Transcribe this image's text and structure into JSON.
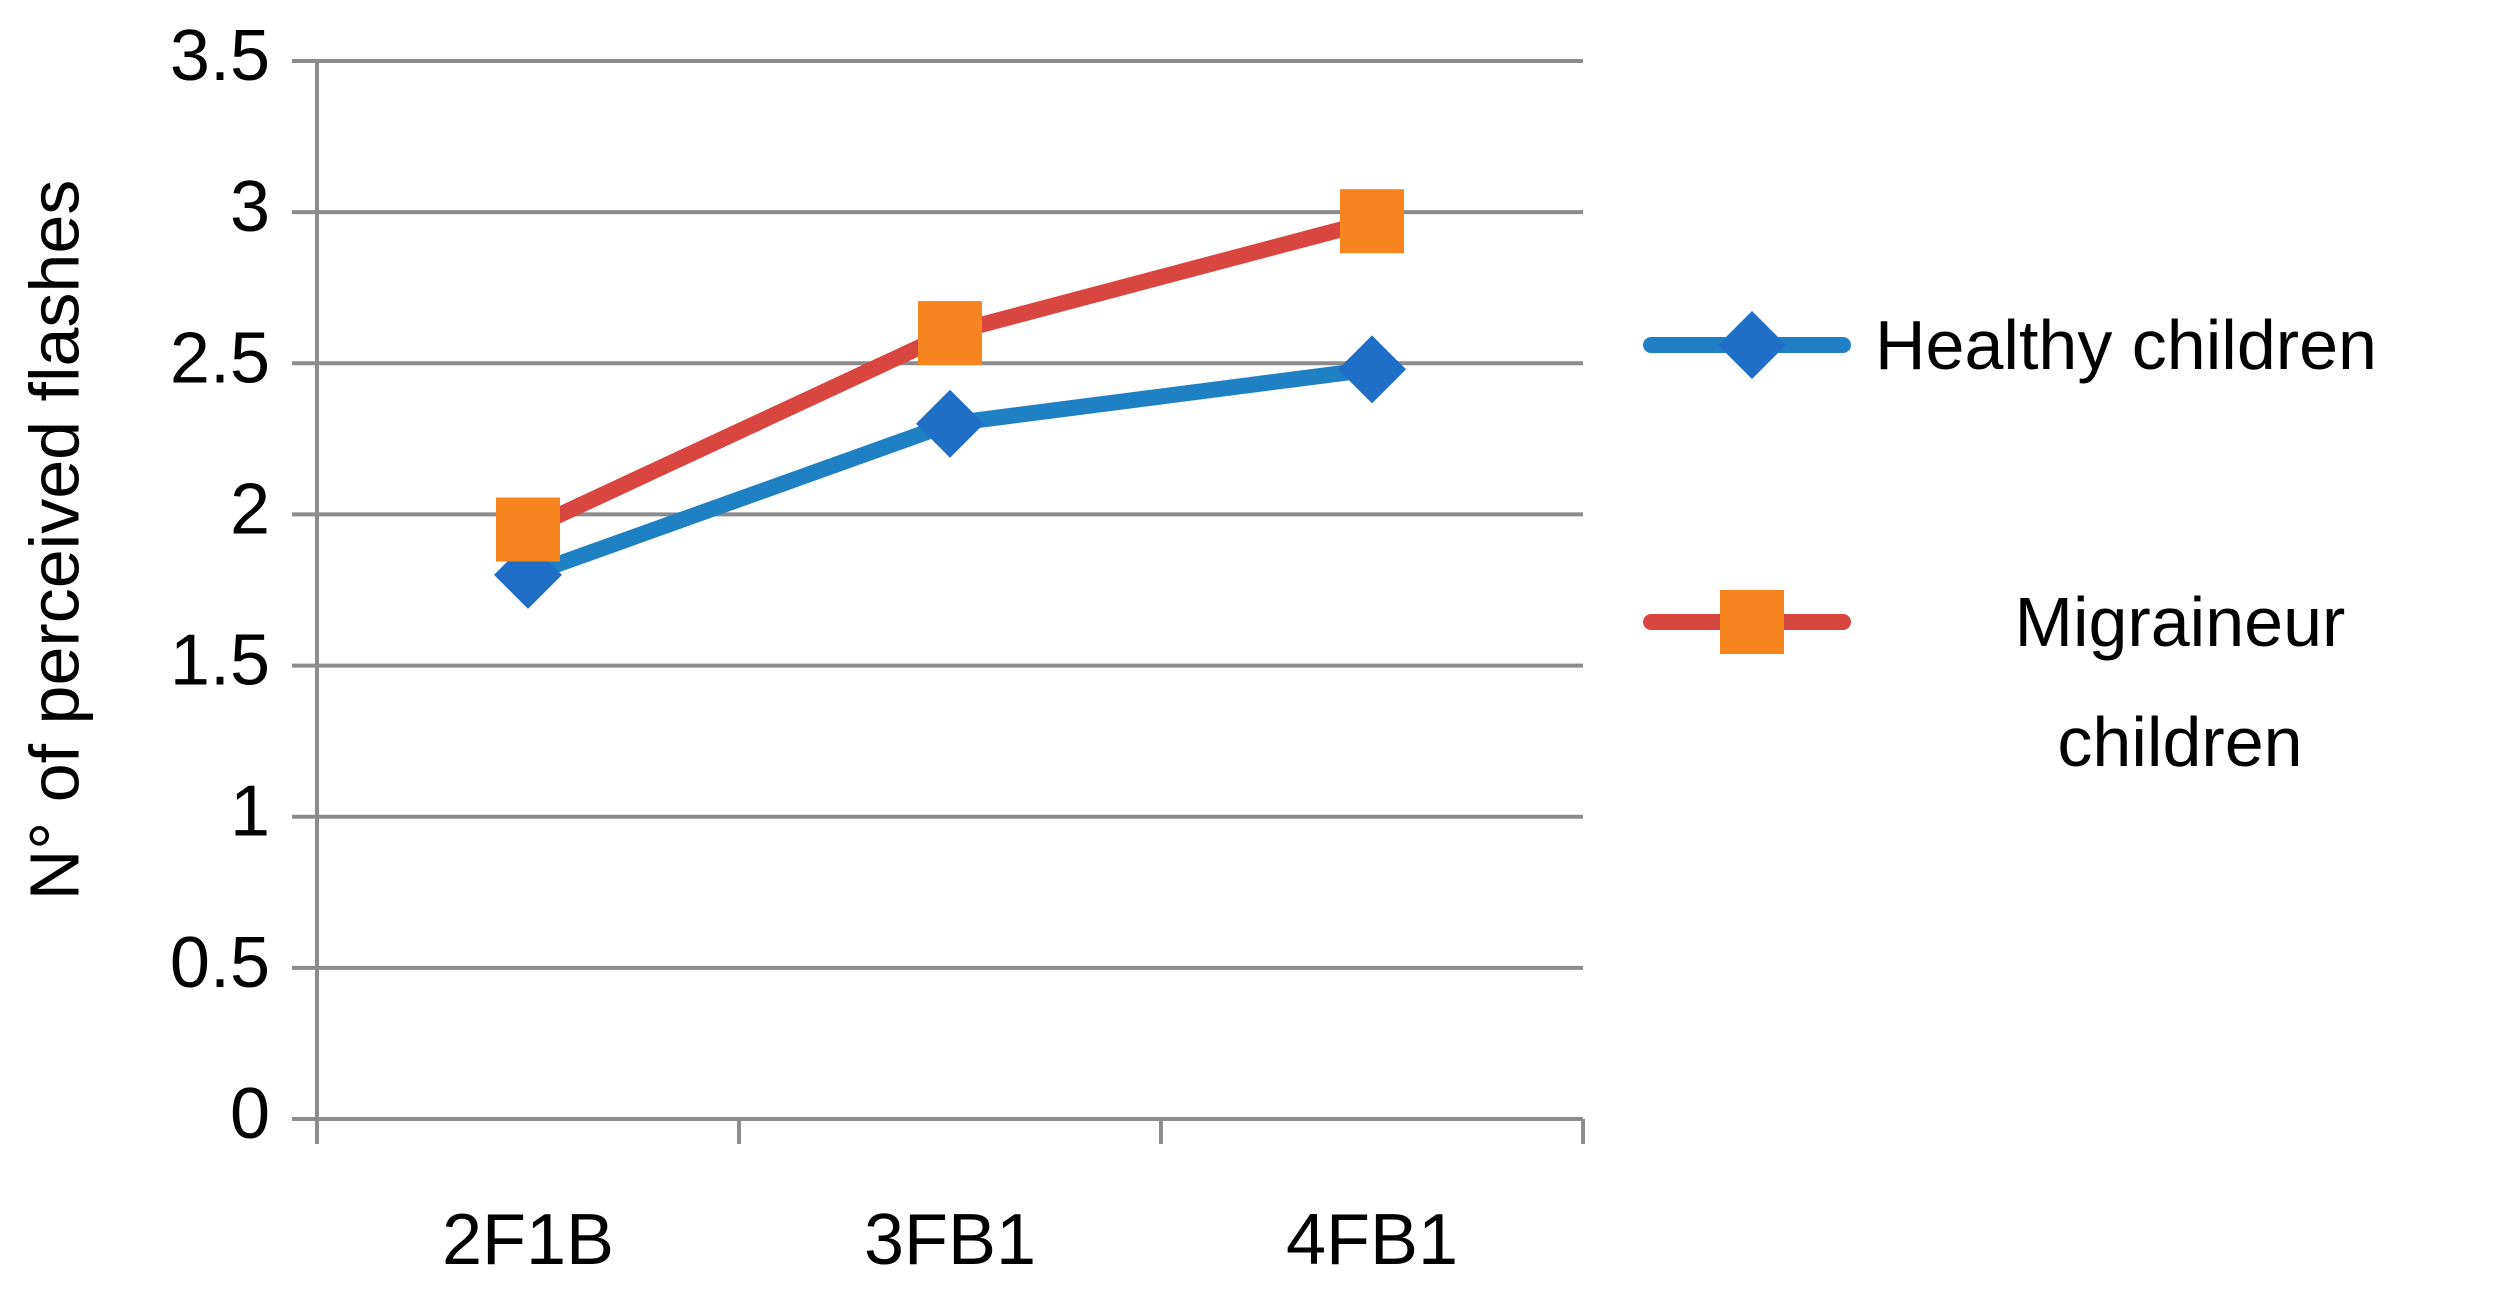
{
  "chart_data": {
    "type": "line",
    "categories": [
      "2F1B",
      "3FB1",
      "4FB1"
    ],
    "y_label": "N° of perceived flashes",
    "ylim": [
      0,
      3.5
    ],
    "yticks": [
      0,
      0.5,
      1,
      1.5,
      2,
      2.5,
      3,
      3.5
    ],
    "grid": true,
    "series": [
      {
        "name": "Healthy children",
        "color": "#1f80c4",
        "marker_color": "#1f6fc8",
        "marker": "diamond",
        "values": [
          1.8,
          2.3,
          2.48
        ]
      },
      {
        "name": "Migraineur children",
        "color": "#d9463f",
        "marker_color": "#f7851f",
        "marker": "square",
        "values": [
          1.95,
          2.6,
          2.97
        ]
      }
    ]
  }
}
